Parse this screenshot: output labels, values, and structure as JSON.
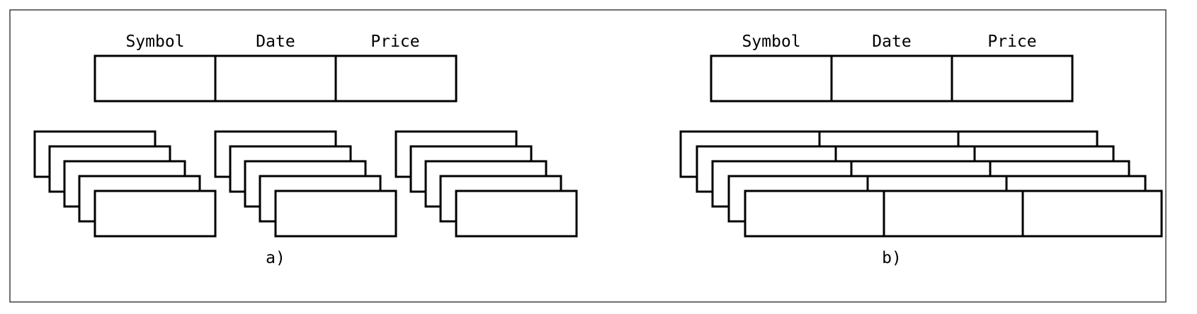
{
  "diagram": {
    "panel_a": {
      "header_labels": [
        "Symbol",
        "Date",
        "Price"
      ],
      "caption": "a)",
      "stack_count": 5
    },
    "panel_b": {
      "header_labels": [
        "Symbol",
        "Date",
        "Price"
      ],
      "caption": "b)",
      "stack_count": 5
    }
  },
  "colors": {
    "stroke": "#000000",
    "fill": "#ffffff",
    "frame": "#222222"
  }
}
